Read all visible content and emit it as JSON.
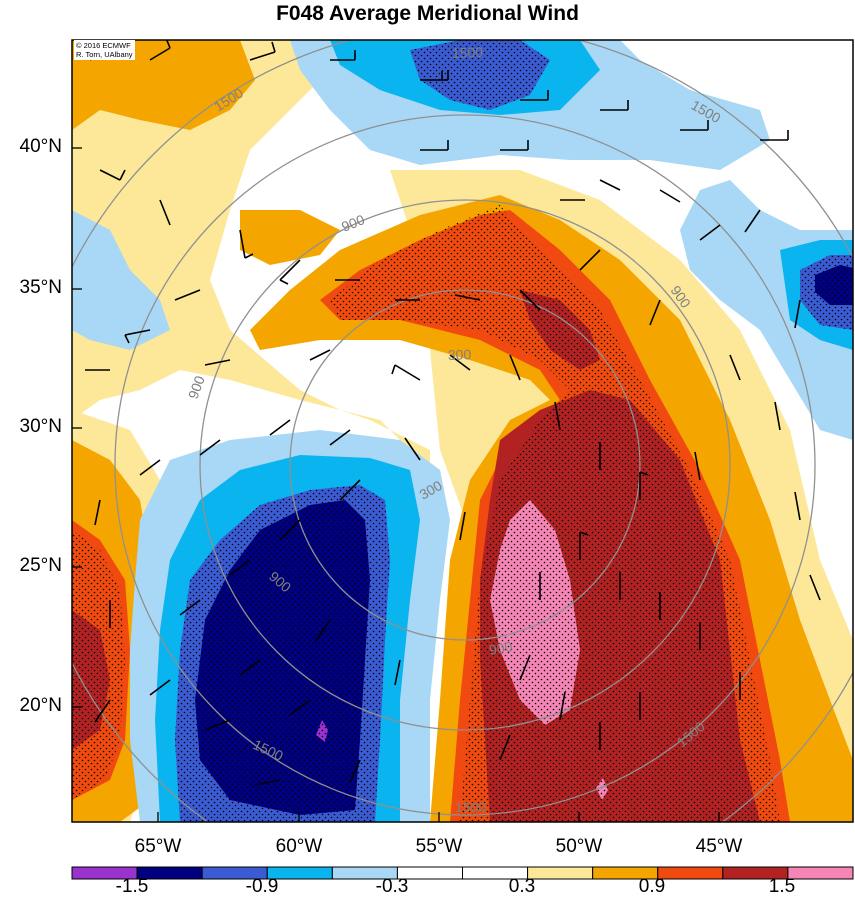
{
  "title": "F048 Average Meridional Wind",
  "credit": {
    "line1": "© 2016 ECMWF",
    "line2": "R. Torn, UAlbany"
  },
  "lat_labels": [
    "40°N",
    "35°N",
    "30°N",
    "25°N",
    "20°N"
  ],
  "lon_labels": [
    "65°W",
    "60°W",
    "55°W",
    "50°W",
    "45°W"
  ],
  "contour_labels": [
    "1500",
    "1500",
    "1500",
    "900",
    "900",
    "300",
    "300",
    "900",
    "900",
    "900",
    "1500",
    "1500",
    "1500"
  ],
  "colorbar": {
    "labels": [
      "-1.5",
      "-0.9",
      "-0.3",
      "0.3",
      "0.9",
      "1.5"
    ],
    "colors": [
      "#9a32cd",
      "#000080",
      "#3a5bd1",
      "#0ab4ee",
      "#a8d8f5",
      "#ffffff",
      "#ffffff",
      "#fde89a",
      "#f5a500",
      "#f04a10",
      "#b22222",
      "#f585b5"
    ]
  },
  "fill_colors": {
    "orange_light": "#fde89a",
    "orange": "#f5a500",
    "orange_red": "#f04a10",
    "dark_red": "#b22222",
    "pink": "#f585b5",
    "blue_light": "#a8d8f5",
    "blue": "#0ab4ee",
    "blue_mid": "#3a5bd1",
    "navy": "#000080",
    "purple": "#9a32cd",
    "range_ring": "#909090"
  }
}
